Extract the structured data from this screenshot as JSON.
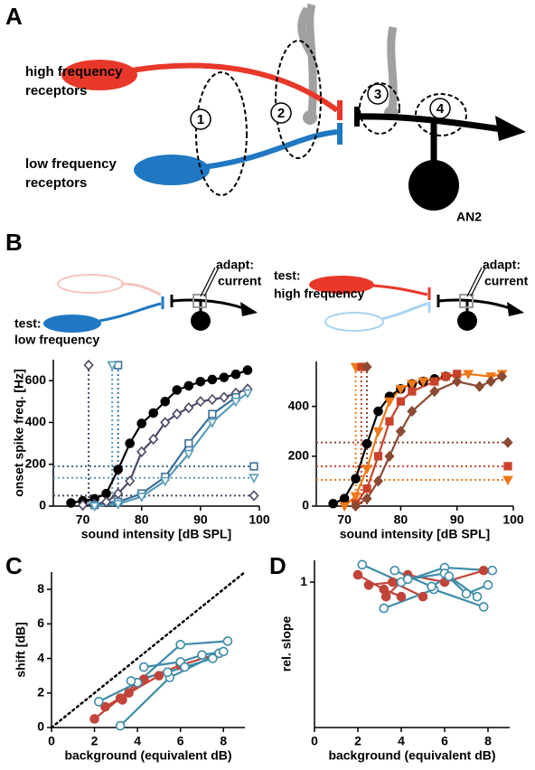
{
  "panel_labels": [
    "A",
    "B",
    "C",
    "D"
  ],
  "diagram": {
    "high_receptors": [
      "high frequency",
      "receptors"
    ],
    "low_receptors": [
      "low frequency",
      "receptors"
    ],
    "sites": [
      "1",
      "2",
      "3",
      "4"
    ],
    "neuron": "AN2"
  },
  "schematics": [
    {
      "adapt": [
        "adapt:",
        "current"
      ],
      "test": [
        "test:",
        "low frequency"
      ]
    },
    {
      "adapt": [
        "adapt:",
        "current"
      ],
      "test": [
        "test:",
        "high frequency"
      ]
    }
  ],
  "chart_data": [
    {
      "type": "line",
      "x_label": "sound intensity [dB SPL]",
      "y_label": "onset spike freq. [Hz]",
      "xlim": [
        65,
        100
      ],
      "xticks": [
        70,
        80,
        90,
        100
      ],
      "ylim": [
        0,
        700
      ],
      "yticks": [
        0,
        200,
        400,
        600
      ],
      "series": [
        {
          "color": "#000000",
          "marker": "circle",
          "filled": true,
          "x": [
            68,
            70,
            72,
            74,
            76,
            78,
            80,
            82,
            84,
            86,
            88,
            90,
            92,
            94,
            96,
            98
          ],
          "values": [
            15,
            25,
            35,
            60,
            175,
            300,
            395,
            445,
            500,
            555,
            575,
            595,
            605,
            615,
            630,
            650
          ]
        },
        {
          "color": "#4a4a66",
          "marker": "diamond",
          "filled": false,
          "x": [
            70,
            72,
            74,
            76,
            78,
            80,
            82,
            84,
            86,
            88,
            90,
            92,
            94,
            96,
            98
          ],
          "values": [
            5,
            10,
            20,
            60,
            120,
            260,
            320,
            400,
            440,
            470,
            500,
            510,
            520,
            540,
            560
          ],
          "threshold_x": 71,
          "threshold_y": 50
        },
        {
          "color": "#3c6f98",
          "marker": "square",
          "filled": false,
          "x": [
            72,
            76,
            80,
            84,
            88,
            92,
            96
          ],
          "values": [
            5,
            20,
            60,
            140,
            300,
            440,
            520
          ],
          "threshold_x": 76,
          "threshold_y": 190
        },
        {
          "color": "#5a9cb8",
          "marker": "triangle",
          "filled": false,
          "x": [
            72,
            76,
            80,
            84,
            88,
            92,
            96,
            98
          ],
          "values": [
            0,
            10,
            45,
            120,
            250,
            400,
            500,
            540
          ],
          "threshold_x": 75,
          "threshold_y": 135
        }
      ]
    },
    {
      "type": "line",
      "x_label": "sound intensity [dB SPL]",
      "xlim": [
        65,
        100
      ],
      "xticks": [
        70,
        80,
        90,
        100
      ],
      "ylim": [
        0,
        580
      ],
      "yticks": [
        0,
        200,
        400
      ],
      "series": [
        {
          "color": "#000000",
          "marker": "circle",
          "filled": true,
          "x": [
            68,
            70,
            72,
            74,
            76,
            78,
            80,
            82,
            84,
            86,
            88
          ],
          "values": [
            10,
            30,
            110,
            250,
            380,
            440,
            470,
            490,
            500,
            510,
            520
          ]
        },
        {
          "color": "#f07818",
          "marker": "triangle",
          "filled": true,
          "x": [
            70,
            72,
            74,
            76,
            78,
            80,
            82,
            84,
            88,
            92,
            96,
            98
          ],
          "values": [
            0,
            40,
            150,
            300,
            420,
            470,
            490,
            500,
            520,
            530,
            520,
            530
          ],
          "threshold_x": 72,
          "threshold_y": 105
        },
        {
          "color": "#c8432a",
          "marker": "square",
          "filled": true,
          "x": [
            72,
            74,
            76,
            78,
            80,
            82,
            86,
            88,
            90
          ],
          "values": [
            10,
            70,
            200,
            340,
            420,
            460,
            500,
            520,
            530
          ],
          "threshold_x": 73,
          "threshold_y": 160
        },
        {
          "color": "#8a4a33",
          "marker": "diamond",
          "filled": true,
          "x": [
            72,
            74,
            76,
            78,
            80,
            82,
            86,
            90,
            94,
            96,
            98
          ],
          "values": [
            0,
            30,
            100,
            200,
            300,
            380,
            460,
            500,
            480,
            500,
            520
          ],
          "threshold_x": 74,
          "threshold_y": 255
        }
      ]
    },
    {
      "type": "line",
      "x_label": "background (equivalent dB)",
      "y_label": "shift [dB]",
      "identity_line": true,
      "xlim": [
        0,
        9
      ],
      "xticks": [
        0,
        2,
        4,
        6,
        8
      ],
      "ylim": [
        0,
        9
      ],
      "yticks": [
        0,
        2,
        4,
        6,
        8
      ],
      "series": [
        {
          "color": "#c0443a",
          "marker": "circle",
          "filled": true,
          "x": [
            2,
            3.2,
            4
          ],
          "values": [
            0.5,
            1.7,
            2.6
          ]
        },
        {
          "color": "#c0443a",
          "marker": "circle",
          "filled": true,
          "x": [
            2.5,
            3.6,
            5
          ],
          "values": [
            1.2,
            2,
            3
          ]
        },
        {
          "color": "#c0443a",
          "marker": "circle",
          "filled": true,
          "x": [
            3.3,
            4.3,
            6,
            7.8
          ],
          "values": [
            1.6,
            2.8,
            3.6,
            4.3
          ]
        },
        {
          "color": "#3d8ca8",
          "marker": "circle",
          "filled": false,
          "x": [
            2.2,
            4,
            6,
            8.2
          ],
          "values": [
            1.5,
            2.6,
            4.8,
            5
          ]
        },
        {
          "color": "#3d8ca8",
          "marker": "circle",
          "filled": false,
          "x": [
            3.2,
            5.5,
            7.8
          ],
          "values": [
            0.1,
            2.9,
            4.3
          ]
        },
        {
          "color": "#3d8ca8",
          "marker": "circle",
          "filled": false,
          "x": [
            4.3,
            6,
            7,
            8
          ],
          "values": [
            3.5,
            3.8,
            4.2,
            4.4
          ]
        },
        {
          "color": "#3d8ca8",
          "marker": "circle",
          "filled": false,
          "x": [
            3.7,
            5.4,
            6.2,
            7.5
          ],
          "values": [
            2.7,
            3.2,
            3.5,
            4
          ]
        }
      ]
    },
    {
      "type": "line",
      "x_label": "background (equivalent dB)",
      "y_label": "rel. slope",
      "xlim": [
        0,
        9
      ],
      "xticks": [
        0,
        2,
        4,
        6,
        8
      ],
      "ylim": [
        0,
        1.15
      ],
      "yticks": [
        1
      ],
      "series": [
        {
          "color": "#c0443a",
          "marker": "circle",
          "filled": true,
          "x": [
            2,
            3.2,
            4
          ],
          "values": [
            1.05,
            0.95,
            0.9
          ]
        },
        {
          "color": "#c0443a",
          "marker": "circle",
          "filled": true,
          "x": [
            2.5,
            3.6,
            5
          ],
          "values": [
            0.98,
            1,
            0.9
          ]
        },
        {
          "color": "#c0443a",
          "marker": "circle",
          "filled": true,
          "x": [
            3.3,
            4.3,
            6,
            7.8
          ],
          "values": [
            0.9,
            1.05,
            1,
            1.08
          ]
        },
        {
          "color": "#3d8ca8",
          "marker": "circle",
          "filled": false,
          "x": [
            2.2,
            4,
            6,
            8.2
          ],
          "values": [
            1.12,
            1,
            1.1,
            1.08
          ]
        },
        {
          "color": "#3d8ca8",
          "marker": "circle",
          "filled": false,
          "x": [
            3.2,
            5.5,
            7.8
          ],
          "values": [
            0.82,
            0.95,
            0.83
          ]
        },
        {
          "color": "#3d8ca8",
          "marker": "circle",
          "filled": false,
          "x": [
            4.3,
            6,
            7,
            8
          ],
          "values": [
            1.02,
            1.06,
            0.92,
            0.98
          ]
        },
        {
          "color": "#3d8ca8",
          "marker": "circle",
          "filled": false,
          "x": [
            3.7,
            5.4,
            6.2,
            7.5
          ],
          "values": [
            1.08,
            0.97,
            1.04,
            0.9
          ]
        }
      ]
    }
  ]
}
